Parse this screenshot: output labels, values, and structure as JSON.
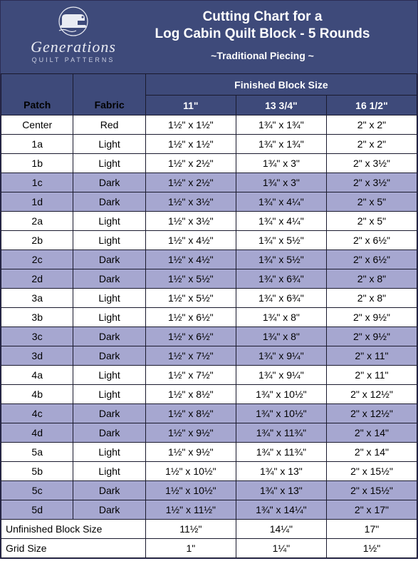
{
  "colors": {
    "header_bg": "#3e4a7a",
    "dark_row_bg": "#a6a7d0",
    "light_row_bg": "#ffffff",
    "border": "#1a1a2e",
    "text_light": "#ffffff"
  },
  "brand": {
    "name": "Generations",
    "sub": "QUILT PATTERNS"
  },
  "title": {
    "line1": "Cutting Chart for a",
    "line2": "Log Cabin Quilt Block - 5 Rounds",
    "subtitle": "~Traditional Piecing ~"
  },
  "headers": {
    "group": "Finished Block Size",
    "patch": "Patch",
    "fabric": "Fabric",
    "size1": "11\"",
    "size2": "13 3/4\"",
    "size3": "16 1/2\""
  },
  "rows": [
    {
      "tone": "light",
      "patch": "Center",
      "fabric": "Red",
      "s1": "1½\" x 1½\"",
      "s2": "1¾\" x 1¾\"",
      "s3": "2\" x 2\""
    },
    {
      "tone": "light",
      "patch": "1a",
      "fabric": "Light",
      "s1": "1½\" x 1½\"",
      "s2": "1¾\" x 1¾\"",
      "s3": "2\" x 2\""
    },
    {
      "tone": "light",
      "patch": "1b",
      "fabric": "Light",
      "s1": "1½\" x 2½\"",
      "s2": "1¾\" x 3\"",
      "s3": "2\" x 3½\""
    },
    {
      "tone": "dark",
      "patch": "1c",
      "fabric": "Dark",
      "s1": "1½\" x 2½\"",
      "s2": "1¾\" x 3\"",
      "s3": "2\" x 3½\""
    },
    {
      "tone": "dark",
      "patch": "1d",
      "fabric": "Dark",
      "s1": "1½\" x 3½\"",
      "s2": "1¾\" x 4¼\"",
      "s3": "2\" x 5\""
    },
    {
      "tone": "light",
      "patch": "2a",
      "fabric": "Light",
      "s1": "1½\" x 3½\"",
      "s2": "1¾\" x 4¼\"",
      "s3": "2\" x 5\""
    },
    {
      "tone": "light",
      "patch": "2b",
      "fabric": "Light",
      "s1": "1½\" x 4½\"",
      "s2": "1¾\" x 5½\"",
      "s3": "2\" x 6½\""
    },
    {
      "tone": "dark",
      "patch": "2c",
      "fabric": "Dark",
      "s1": "1½\" x 4½\"",
      "s2": "1¾\" x 5½\"",
      "s3": "2\" x 6½\""
    },
    {
      "tone": "dark",
      "patch": "2d",
      "fabric": "Dark",
      "s1": "1½\" x 5½\"",
      "s2": "1¾\" x 6¾\"",
      "s3": "2\" x 8\""
    },
    {
      "tone": "light",
      "patch": "3a",
      "fabric": "Light",
      "s1": "1½\" x 5½\"",
      "s2": "1¾\" x 6¾\"",
      "s3": "2\" x 8\""
    },
    {
      "tone": "light",
      "patch": "3b",
      "fabric": "Light",
      "s1": "1½\" x 6½\"",
      "s2": "1¾\" x 8\"",
      "s3": "2\" x 9½\""
    },
    {
      "tone": "dark",
      "patch": "3c",
      "fabric": "Dark",
      "s1": "1½\" x 6½\"",
      "s2": "1¾\" x 8\"",
      "s3": "2\" x 9½\""
    },
    {
      "tone": "dark",
      "patch": "3d",
      "fabric": "Dark",
      "s1": "1½\" x 7½\"",
      "s2": "1¾\" x 9¼\"",
      "s3": "2\" x 11\""
    },
    {
      "tone": "light",
      "patch": "4a",
      "fabric": "Light",
      "s1": "1½\" x 7½\"",
      "s2": "1¾\" x 9¼\"",
      "s3": "2\" x 11\""
    },
    {
      "tone": "light",
      "patch": "4b",
      "fabric": "Light",
      "s1": "1½\" x 8½\"",
      "s2": "1¾\" x 10½\"",
      "s3": "2\" x 12½\""
    },
    {
      "tone": "dark",
      "patch": "4c",
      "fabric": "Dark",
      "s1": "1½\" x 8½\"",
      "s2": "1¾\" x 10½\"",
      "s3": "2\" x 12½\""
    },
    {
      "tone": "dark",
      "patch": "4d",
      "fabric": "Dark",
      "s1": "1½\" x 9½\"",
      "s2": "1¾\" x 11¾\"",
      "s3": "2\" x 14\""
    },
    {
      "tone": "light",
      "patch": "5a",
      "fabric": "Light",
      "s1": "1½\" x 9½\"",
      "s2": "1¾\" x 11¾\"",
      "s3": "2\" x 14\""
    },
    {
      "tone": "light",
      "patch": "5b",
      "fabric": "Light",
      "s1": "1½\" x 10½\"",
      "s2": "1¾\" x 13\"",
      "s3": "2\" x 15½\""
    },
    {
      "tone": "dark",
      "patch": "5c",
      "fabric": "Dark",
      "s1": "1½\" x 10½\"",
      "s2": "1¾\" x 13\"",
      "s3": "2\" x 15½\""
    },
    {
      "tone": "dark",
      "patch": "5d",
      "fabric": "Dark",
      "s1": "1½\" x 11½\"",
      "s2": "1¾\" x 14¼\"",
      "s3": "2\" x 17\""
    }
  ],
  "footers": [
    {
      "label": "Unfinished Block Size",
      "s1": "11½\"",
      "s2": "14¼\"",
      "s3": "17\""
    },
    {
      "label": "Grid Size",
      "s1": "1\"",
      "s2": "1¼\"",
      "s3": "1½\""
    }
  ]
}
